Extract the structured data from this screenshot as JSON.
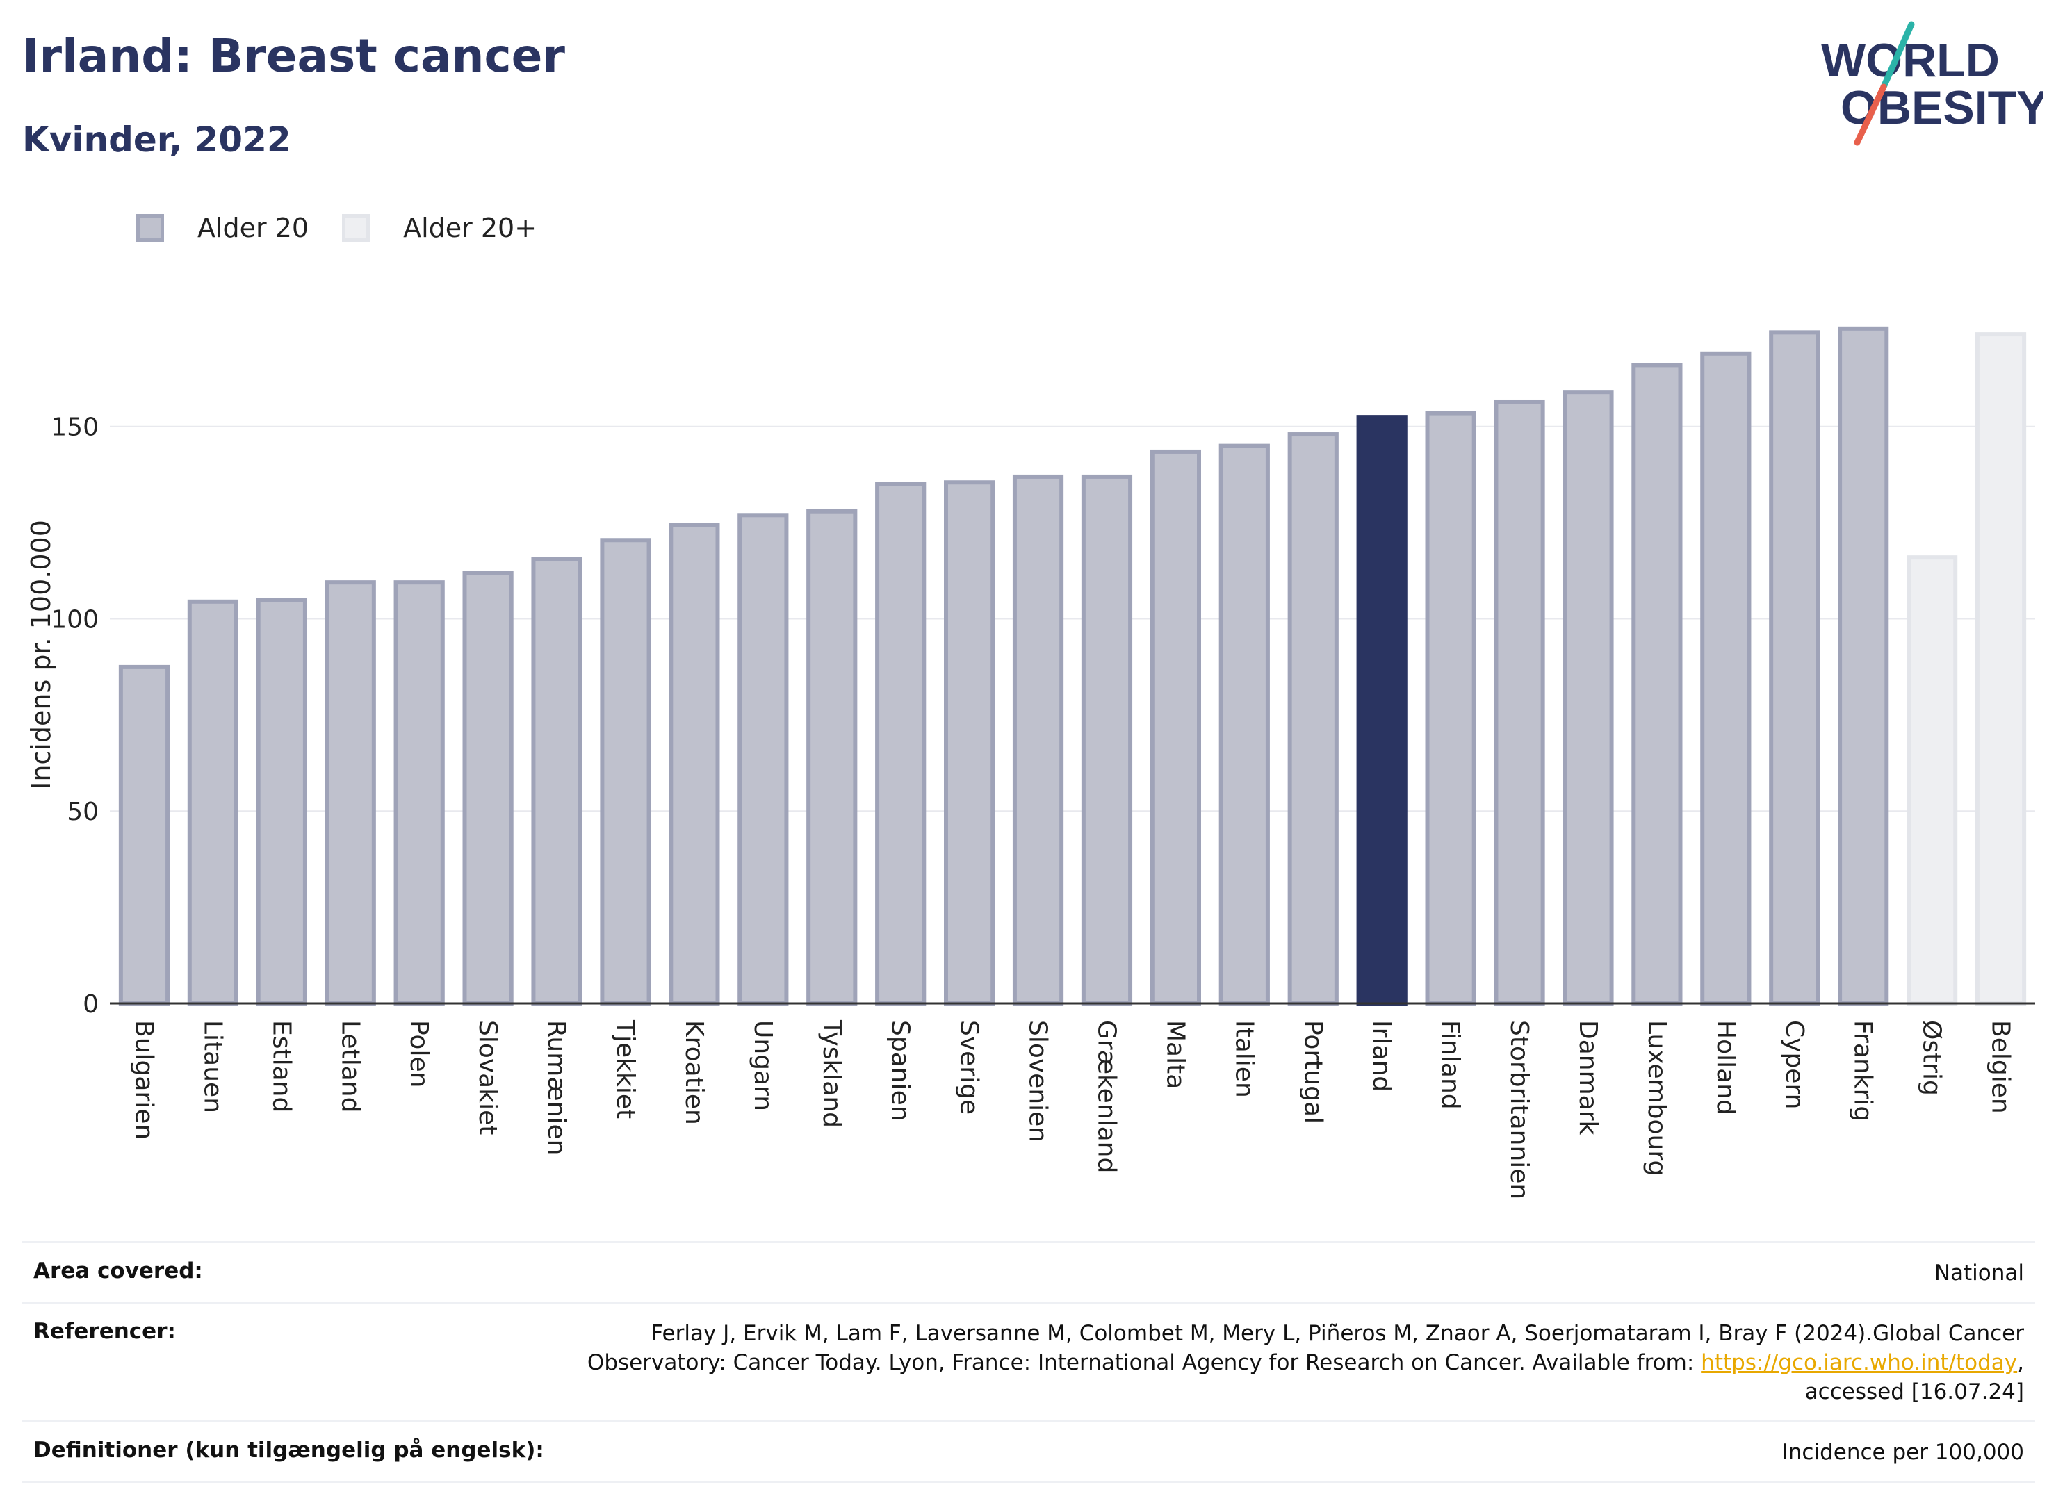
{
  "header": {
    "title": "Irland: Breast cancer",
    "subtitle": "Kvinder, 2022"
  },
  "logo": {
    "line1": "WORLD",
    "line2": "OBESITY",
    "colors": {
      "text": "#2a3461",
      "slash_top": "#2bb3a8",
      "slash_bottom": "#e8604c"
    }
  },
  "legend": [
    {
      "label": "Alder 20",
      "fill": "#bfc1cd",
      "stroke": "#a3a7bb"
    },
    {
      "label": "Alder 20+",
      "fill": "#eeeff2",
      "stroke": "#e3e5ea"
    }
  ],
  "colors": {
    "bar": "#bfc1cd",
    "bar_stroke": "#9fa3b8",
    "highlight": "#2a3461",
    "bar_20plus": "#eeeff2",
    "bar_20plus_stroke": "#e3e5ea",
    "grid": "#e8e9ee"
  },
  "chart_data": {
    "type": "bar",
    "ylabel": "Incidens pr. 100.000",
    "ylim": [
      0,
      185
    ],
    "yticks": [
      0,
      50,
      100,
      150
    ],
    "grid": true,
    "legend_position": "top-left",
    "highlight": "Irland",
    "categories": [
      "Bulgarien",
      "Litauen",
      "Estland",
      "Letland",
      "Polen",
      "Slovakiet",
      "Rumænien",
      "Tjekkiet",
      "Kroatien",
      "Ungarn",
      "Tyskland",
      "Spanien",
      "Sverige",
      "Slovenien",
      "Grækenland",
      "Malta",
      "Italien",
      "Portugal",
      "Irland",
      "Finland",
      "Storbritannien",
      "Danmark",
      "Luxembourg",
      "Holland",
      "Cypern",
      "Frankrig",
      "Østrig",
      "Belgien"
    ],
    "series": [
      {
        "name": "Alder 20",
        "values": [
          88,
          105,
          105.5,
          110,
          110,
          112.5,
          116,
          121,
          125,
          127.5,
          128.5,
          135.5,
          136,
          137.5,
          137.5,
          144,
          145.5,
          148.5,
          153,
          154,
          157,
          159.5,
          166.5,
          169.5,
          175,
          176,
          null,
          null
        ]
      },
      {
        "name": "Alder 20+",
        "values": [
          null,
          null,
          null,
          null,
          null,
          null,
          null,
          null,
          null,
          null,
          null,
          null,
          null,
          null,
          null,
          null,
          null,
          null,
          null,
          null,
          null,
          null,
          null,
          null,
          null,
          null,
          116.5,
          174.5
        ]
      }
    ]
  },
  "footer": [
    {
      "label": "Area covered:",
      "value": "National"
    },
    {
      "label": "Referencer:",
      "value_before": "Ferlay J, Ervik M, Lam F, Laversanne M, Colombet M, Mery L, Piñeros M, Znaor A, Soerjomataram I, Bray F (2024).Global Cancer Observatory: Cancer Today. Lyon, France: International Agency for Research on Cancer. Available from: ",
      "link": "https://gco.iarc.who.int/today",
      "value_after": ", accessed [16.07.24]"
    },
    {
      "label": "Definitioner (kun tilgængelig på engelsk):",
      "value": "Incidence per 100,000"
    }
  ]
}
